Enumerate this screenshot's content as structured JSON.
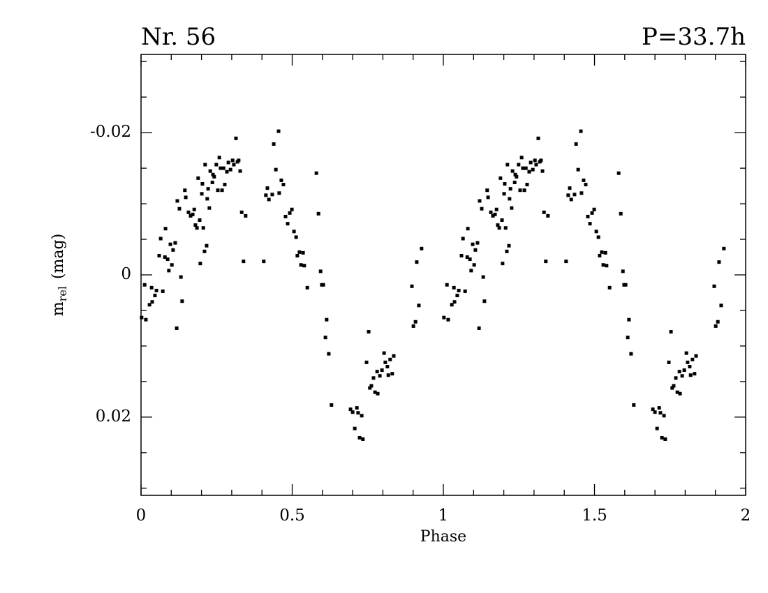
{
  "chart_data": {
    "type": "scatter",
    "title": "Nr. 56",
    "title_right": "P=33.7h",
    "xlabel": "Phase",
    "ylabel": {
      "base": "m",
      "sub": "rel",
      "rest": "(mag)"
    },
    "xlim": [
      0,
      2
    ],
    "ylim": [
      -0.031,
      0.031
    ],
    "y_inverted": true,
    "xticks": [
      0,
      0.5,
      1,
      1.5,
      2
    ],
    "yticks": [
      -0.02,
      0,
      0.02
    ],
    "xminorticks": [
      0.1,
      0.2,
      0.3,
      0.4,
      0.6,
      0.7,
      0.8,
      0.9,
      1.1,
      1.2,
      1.3,
      1.4,
      1.6,
      1.7,
      1.8,
      1.9
    ],
    "yminorticks": [
      -0.03,
      -0.025,
      -0.015,
      -0.01,
      -0.005,
      0.005,
      0.01,
      0.015,
      0.025,
      0.03
    ],
    "series": [
      {
        "color": "#000000",
        "x": [
          0.002,
          0.012,
          0.016,
          0.028,
          0.035,
          0.037,
          0.046,
          0.051,
          0.06,
          0.065,
          0.072,
          0.079,
          0.081,
          0.088,
          0.092,
          0.097,
          0.102,
          0.106,
          0.113,
          0.118,
          0.12,
          0.127,
          0.132,
          0.136,
          0.145,
          0.148,
          0.157,
          0.164,
          0.171,
          0.176,
          0.18,
          0.185,
          0.189,
          0.194,
          0.196,
          0.201,
          0.203,
          0.206,
          0.21,
          0.212,
          0.217,
          0.219,
          0.222,
          0.226,
          0.229,
          0.236,
          0.238,
          0.242,
          0.249,
          0.254,
          0.259,
          0.263,
          0.268,
          0.273,
          0.277,
          0.284,
          0.289,
          0.296,
          0.303,
          0.307,
          0.314,
          0.319,
          0.323,
          0.328,
          0.333,
          0.339,
          0.346,
          0.406,
          0.413,
          0.418,
          0.423,
          0.434,
          0.439,
          0.446,
          0.455,
          0.457,
          0.464,
          0.471,
          0.478,
          0.485,
          0.492,
          0.499,
          0.506,
          0.513,
          0.517,
          0.524,
          0.529,
          0.536,
          0.54,
          0.55,
          0.58,
          0.587,
          0.594,
          0.598,
          0.603,
          0.61,
          0.614,
          0.621,
          0.63,
          0.693,
          0.7,
          0.707,
          0.714,
          0.718,
          0.723,
          0.73,
          0.734,
          0.746,
          0.753,
          0.757,
          0.762,
          0.769,
          0.774,
          0.781,
          0.783,
          0.79,
          0.797,
          0.804,
          0.808,
          0.815,
          0.818,
          0.824,
          0.831,
          0.836,
          0.896,
          0.901,
          0.908,
          0.912,
          0.919,
          0.928,
          1.002,
          1.012,
          1.016,
          1.028,
          1.035,
          1.037,
          1.046,
          1.051,
          1.06,
          1.065,
          1.072,
          1.079,
          1.081,
          1.088,
          1.092,
          1.097,
          1.102,
          1.106,
          1.113,
          1.118,
          1.12,
          1.127,
          1.132,
          1.136,
          1.145,
          1.148,
          1.157,
          1.164,
          1.171,
          1.176,
          1.18,
          1.185,
          1.189,
          1.194,
          1.196,
          1.201,
          1.203,
          1.206,
          1.21,
          1.212,
          1.217,
          1.219,
          1.222,
          1.226,
          1.229,
          1.236,
          1.238,
          1.242,
          1.249,
          1.254,
          1.259,
          1.263,
          1.268,
          1.273,
          1.277,
          1.284,
          1.289,
          1.296,
          1.303,
          1.307,
          1.314,
          1.319,
          1.323,
          1.328,
          1.333,
          1.339,
          1.346,
          1.406,
          1.413,
          1.418,
          1.423,
          1.434,
          1.439,
          1.446,
          1.455,
          1.457,
          1.464,
          1.471,
          1.478,
          1.485,
          1.492,
          1.499,
          1.506,
          1.513,
          1.517,
          1.524,
          1.529,
          1.536,
          1.54,
          1.55,
          1.58,
          1.587,
          1.594,
          1.598,
          1.603,
          1.61,
          1.614,
          1.621,
          1.63,
          1.693,
          1.7,
          1.707,
          1.714,
          1.718,
          1.723,
          1.73,
          1.734,
          1.746,
          1.753,
          1.757,
          1.762,
          1.769,
          1.774,
          1.781,
          1.783,
          1.79,
          1.797,
          1.804,
          1.808,
          1.815,
          1.818,
          1.824,
          1.831,
          1.836,
          1.896,
          1.901,
          1.908,
          1.912,
          1.919,
          1.928
        ],
        "values": [
          0.006,
          0.0014,
          0.0063,
          0.0042,
          0.0018,
          0.0038,
          0.0029,
          0.0022,
          -0.0027,
          -0.0051,
          0.0023,
          -0.0025,
          -0.0065,
          -0.0022,
          -0.0006,
          -0.0043,
          -0.0014,
          -0.0035,
          -0.0045,
          0.0075,
          -0.0104,
          -0.0093,
          0.0003,
          0.0037,
          -0.0119,
          -0.0109,
          -0.0088,
          -0.0083,
          -0.0085,
          -0.0092,
          -0.007,
          -0.0066,
          -0.0136,
          -0.0077,
          -0.0016,
          -0.0114,
          -0.0128,
          -0.0066,
          -0.0033,
          -0.0155,
          -0.0041,
          -0.0107,
          -0.0121,
          -0.0094,
          -0.0146,
          -0.013,
          -0.0141,
          -0.0138,
          -0.0155,
          -0.0119,
          -0.0165,
          -0.015,
          -0.0119,
          -0.015,
          -0.0127,
          -0.0145,
          -0.0158,
          -0.0148,
          -0.0161,
          -0.0155,
          -0.0192,
          -0.0159,
          -0.0161,
          -0.0146,
          -0.0088,
          -0.0019,
          -0.0083,
          -0.0019,
          -0.0112,
          -0.0122,
          -0.0106,
          -0.0113,
          -0.0184,
          -0.0148,
          -0.0202,
          -0.0115,
          -0.0133,
          -0.0127,
          -0.0082,
          -0.0072,
          -0.0087,
          -0.0092,
          -0.0061,
          -0.0053,
          -0.0027,
          -0.0032,
          -0.0014,
          -0.0031,
          -0.0013,
          0.0018,
          -0.0143,
          -0.0086,
          -0.0005,
          0.0014,
          0.0014,
          0.0088,
          0.0063,
          0.0111,
          0.0183,
          0.0189,
          0.0193,
          0.0216,
          0.0187,
          0.0194,
          0.0229,
          0.0198,
          0.0231,
          0.0123,
          0.008,
          0.0159,
          0.0156,
          0.0145,
          0.0165,
          0.0136,
          0.0167,
          0.0142,
          0.0134,
          0.011,
          0.0123,
          0.0129,
          0.0141,
          0.0119,
          0.0139,
          0.0114,
          0.0016,
          0.0072,
          0.0066,
          -0.0018,
          0.0043,
          -0.0037,
          0.006,
          0.0014,
          0.0063,
          0.0042,
          0.0018,
          0.0038,
          0.0029,
          0.0022,
          -0.0027,
          -0.0051,
          0.0023,
          -0.0025,
          -0.0065,
          -0.0022,
          -0.0006,
          -0.0043,
          -0.0014,
          -0.0035,
          -0.0045,
          0.0075,
          -0.0104,
          -0.0093,
          0.0003,
          0.0037,
          -0.0119,
          -0.0109,
          -0.0088,
          -0.0083,
          -0.0085,
          -0.0092,
          -0.007,
          -0.0066,
          -0.0136,
          -0.0077,
          -0.0016,
          -0.0114,
          -0.0128,
          -0.0066,
          -0.0033,
          -0.0155,
          -0.0041,
          -0.0107,
          -0.0121,
          -0.0094,
          -0.0146,
          -0.013,
          -0.0141,
          -0.0138,
          -0.0155,
          -0.0119,
          -0.0165,
          -0.015,
          -0.0119,
          -0.015,
          -0.0127,
          -0.0145,
          -0.0158,
          -0.0148,
          -0.0161,
          -0.0155,
          -0.0192,
          -0.0159,
          -0.0161,
          -0.0146,
          -0.0088,
          -0.0019,
          -0.0083,
          -0.0019,
          -0.0112,
          -0.0122,
          -0.0106,
          -0.0113,
          -0.0184,
          -0.0148,
          -0.0202,
          -0.0115,
          -0.0133,
          -0.0127,
          -0.0082,
          -0.0072,
          -0.0087,
          -0.0092,
          -0.0061,
          -0.0053,
          -0.0027,
          -0.0032,
          -0.0014,
          -0.0031,
          -0.0013,
          0.0018,
          -0.0143,
          -0.0086,
          -0.0005,
          0.0014,
          0.0014,
          0.0088,
          0.0063,
          0.0111,
          0.0183,
          0.0189,
          0.0193,
          0.0216,
          0.0187,
          0.0194,
          0.0229,
          0.0198,
          0.0231,
          0.0123,
          0.008,
          0.0159,
          0.0156,
          0.0145,
          0.0165,
          0.0136,
          0.0167,
          0.0142,
          0.0134,
          0.011,
          0.0123,
          0.0129,
          0.0141,
          0.0119,
          0.0139,
          0.0114,
          0.0016,
          0.0072,
          0.0066,
          -0.0018,
          0.0043,
          -0.0037
        ]
      }
    ]
  }
}
